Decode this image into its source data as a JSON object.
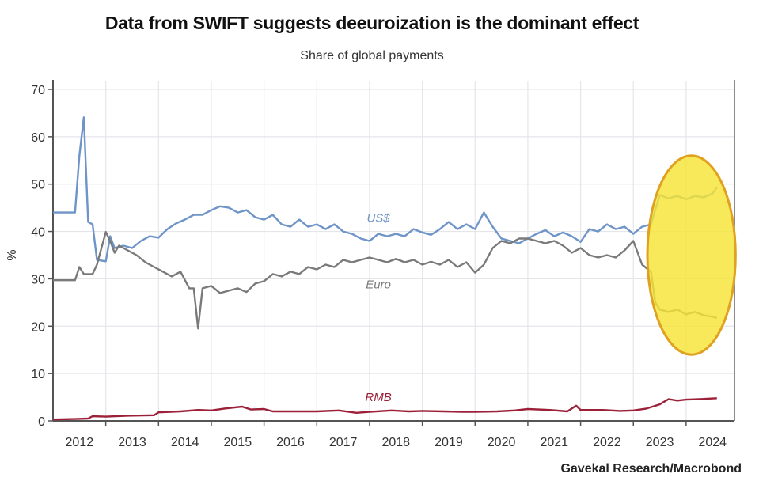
{
  "chart_data": {
    "type": "line",
    "title": "Data from SWIFT suggests deeuroization is the dominant effect",
    "subtitle": "Share of global payments",
    "ylabel": "%",
    "xlabel": "",
    "ylim": [
      0,
      70
    ],
    "xlim": [
      "2012-01",
      "2024-11"
    ],
    "yticks": [
      "0",
      "10",
      "20",
      "30",
      "40",
      "50",
      "60",
      "70"
    ],
    "xticks": [
      "2012",
      "2013",
      "2014",
      "2015",
      "2016",
      "2017",
      "2018",
      "2019",
      "2020",
      "2021",
      "2022",
      "2023",
      "2024"
    ],
    "grid": true,
    "source": "Gavekal Research/Macrobond",
    "highlight": {
      "shape": "ellipse",
      "from": "2023-06",
      "to": "2024-09",
      "ylim": [
        14,
        56
      ],
      "color": "#f5e436",
      "stroke": "#e0a020"
    },
    "series": [
      {
        "name": "US$",
        "color": "#6e94c8",
        "points": [
          [
            "2012-01",
            44.0
          ],
          [
            "2012-06",
            44.0
          ],
          [
            "2012-07",
            56
          ],
          [
            "2012-08",
            64.1
          ],
          [
            "2012-09",
            42
          ],
          [
            "2012-10",
            41.5
          ],
          [
            "2012-11",
            34
          ],
          [
            "2013-01",
            33.7
          ],
          [
            "2013-02",
            39
          ],
          [
            "2013-03",
            36.5
          ],
          [
            "2013-05",
            37
          ],
          [
            "2013-07",
            36.5
          ],
          [
            "2013-09",
            38
          ],
          [
            "2013-11",
            39
          ],
          [
            "2014-01",
            38.7
          ],
          [
            "2014-03",
            40.5
          ],
          [
            "2014-05",
            41.7
          ],
          [
            "2014-07",
            42.5
          ],
          [
            "2014-09",
            43.5
          ],
          [
            "2014-11",
            43.5
          ],
          [
            "2015-01",
            44.5
          ],
          [
            "2015-03",
            45.3
          ],
          [
            "2015-05",
            45
          ],
          [
            "2015-07",
            44
          ],
          [
            "2015-09",
            44.5
          ],
          [
            "2015-11",
            43
          ],
          [
            "2016-01",
            42.5
          ],
          [
            "2016-03",
            43.5
          ],
          [
            "2016-05",
            41.5
          ],
          [
            "2016-07",
            41
          ],
          [
            "2016-09",
            42.5
          ],
          [
            "2016-11",
            41
          ],
          [
            "2017-01",
            41.5
          ],
          [
            "2017-03",
            40.5
          ],
          [
            "2017-05",
            41.5
          ],
          [
            "2017-07",
            40
          ],
          [
            "2017-09",
            39.5
          ],
          [
            "2017-11",
            38.5
          ],
          [
            "2018-01",
            38
          ],
          [
            "2018-03",
            39.5
          ],
          [
            "2018-05",
            39
          ],
          [
            "2018-07",
            39.5
          ],
          [
            "2018-09",
            39
          ],
          [
            "2018-11",
            40.5
          ],
          [
            "2019-01",
            39.8
          ],
          [
            "2019-03",
            39.3
          ],
          [
            "2019-05",
            40.5
          ],
          [
            "2019-07",
            42
          ],
          [
            "2019-09",
            40.5
          ],
          [
            "2019-11",
            41.5
          ],
          [
            "2020-01",
            40.5
          ],
          [
            "2020-03",
            44
          ],
          [
            "2020-05",
            41
          ],
          [
            "2020-07",
            38.5
          ],
          [
            "2020-09",
            38
          ],
          [
            "2020-11",
            37.5
          ],
          [
            "2021-01",
            38.5
          ],
          [
            "2021-03",
            39.5
          ],
          [
            "2021-05",
            40.3
          ],
          [
            "2021-07",
            39
          ],
          [
            "2021-09",
            39.8
          ],
          [
            "2021-11",
            39
          ],
          [
            "2022-01",
            37.8
          ],
          [
            "2022-03",
            40.5
          ],
          [
            "2022-05",
            40
          ],
          [
            "2022-07",
            41.5
          ],
          [
            "2022-09",
            40.5
          ],
          [
            "2022-11",
            41
          ],
          [
            "2023-01",
            39.5
          ],
          [
            "2023-03",
            41
          ],
          [
            "2023-05",
            41.5
          ],
          [
            "2023-07",
            47.7
          ],
          [
            "2023-09",
            47
          ],
          [
            "2023-11",
            47.5
          ],
          [
            "2024-01",
            46.8
          ],
          [
            "2024-03",
            47.5
          ],
          [
            "2024-05",
            47.2
          ],
          [
            "2024-07",
            48
          ],
          [
            "2024-08",
            49.3
          ]
        ]
      },
      {
        "name": "Euro",
        "color": "#7a7a7a",
        "points": [
          [
            "2012-01",
            29.7
          ],
          [
            "2012-06",
            29.7
          ],
          [
            "2012-07",
            32.5
          ],
          [
            "2012-08",
            31
          ],
          [
            "2012-10",
            31
          ],
          [
            "2012-11",
            33
          ],
          [
            "2013-01",
            39.9
          ],
          [
            "2013-02",
            38
          ],
          [
            "2013-03",
            35.5
          ],
          [
            "2013-04",
            37
          ],
          [
            "2013-06",
            36
          ],
          [
            "2013-08",
            35
          ],
          [
            "2013-10",
            33.5
          ],
          [
            "2013-12",
            32.5
          ],
          [
            "2014-02",
            31.5
          ],
          [
            "2014-04",
            30.5
          ],
          [
            "2014-06",
            31.5
          ],
          [
            "2014-08",
            28
          ],
          [
            "2014-09",
            28
          ],
          [
            "2014-10",
            19.5
          ],
          [
            "2014-11",
            28
          ],
          [
            "2015-01",
            28.5
          ],
          [
            "2015-03",
            27
          ],
          [
            "2015-05",
            27.5
          ],
          [
            "2015-07",
            28
          ],
          [
            "2015-09",
            27.2
          ],
          [
            "2015-11",
            29
          ],
          [
            "2016-01",
            29.5
          ],
          [
            "2016-03",
            31
          ],
          [
            "2016-05",
            30.5
          ],
          [
            "2016-07",
            31.5
          ],
          [
            "2016-09",
            31
          ],
          [
            "2016-11",
            32.5
          ],
          [
            "2017-01",
            32
          ],
          [
            "2017-03",
            33
          ],
          [
            "2017-05",
            32.5
          ],
          [
            "2017-07",
            34
          ],
          [
            "2017-09",
            33.5
          ],
          [
            "2017-11",
            34
          ],
          [
            "2018-01",
            34.5
          ],
          [
            "2018-03",
            34
          ],
          [
            "2018-05",
            33.5
          ],
          [
            "2018-07",
            34.2
          ],
          [
            "2018-09",
            33.5
          ],
          [
            "2018-11",
            34
          ],
          [
            "2019-01",
            33
          ],
          [
            "2019-03",
            33.6
          ],
          [
            "2019-05",
            33
          ],
          [
            "2019-07",
            34
          ],
          [
            "2019-09",
            32.5
          ],
          [
            "2019-11",
            33.5
          ],
          [
            "2020-01",
            31.3
          ],
          [
            "2020-03",
            33
          ],
          [
            "2020-05",
            36.5
          ],
          [
            "2020-07",
            38
          ],
          [
            "2020-09",
            37.5
          ],
          [
            "2020-11",
            38.5
          ],
          [
            "2021-01",
            38.5
          ],
          [
            "2021-03",
            38
          ],
          [
            "2021-05",
            37.5
          ],
          [
            "2021-07",
            38
          ],
          [
            "2021-09",
            37
          ],
          [
            "2021-11",
            35.5
          ],
          [
            "2022-01",
            36.5
          ],
          [
            "2022-03",
            35
          ],
          [
            "2022-05",
            34.5
          ],
          [
            "2022-07",
            35
          ],
          [
            "2022-09",
            34.5
          ],
          [
            "2022-11",
            36
          ],
          [
            "2023-01",
            38
          ],
          [
            "2023-03",
            33
          ],
          [
            "2023-05",
            31.5
          ],
          [
            "2023-06",
            25
          ],
          [
            "2023-07",
            23.5
          ],
          [
            "2023-09",
            23
          ],
          [
            "2023-11",
            23.5
          ],
          [
            "2024-01",
            22.5
          ],
          [
            "2024-03",
            23
          ],
          [
            "2024-05",
            22.3
          ],
          [
            "2024-07",
            22
          ],
          [
            "2024-08",
            21.7
          ]
        ]
      },
      {
        "name": "RMB",
        "color": "#9b2038",
        "points": [
          [
            "2012-01",
            0.3
          ],
          [
            "2012-06",
            0.4
          ],
          [
            "2012-09",
            0.5
          ],
          [
            "2012-10",
            1.0
          ],
          [
            "2013-01",
            0.9
          ],
          [
            "2013-06",
            1.1
          ],
          [
            "2013-12",
            1.2
          ],
          [
            "2014-01",
            1.8
          ],
          [
            "2014-06",
            2.0
          ],
          [
            "2014-10",
            2.3
          ],
          [
            "2015-01",
            2.2
          ],
          [
            "2015-04",
            2.6
          ],
          [
            "2015-08",
            3.0
          ],
          [
            "2015-10",
            2.4
          ],
          [
            "2016-01",
            2.5
          ],
          [
            "2016-03",
            2.0
          ],
          [
            "2016-09",
            2.0
          ],
          [
            "2017-01",
            2.0
          ],
          [
            "2017-06",
            2.2
          ],
          [
            "2017-10",
            1.7
          ],
          [
            "2018-01",
            1.9
          ],
          [
            "2018-06",
            2.2
          ],
          [
            "2018-10",
            2.0
          ],
          [
            "2019-01",
            2.1
          ],
          [
            "2019-06",
            2.0
          ],
          [
            "2019-10",
            1.9
          ],
          [
            "2020-01",
            1.9
          ],
          [
            "2020-06",
            2.0
          ],
          [
            "2020-10",
            2.2
          ],
          [
            "2021-01",
            2.5
          ],
          [
            "2021-06",
            2.3
          ],
          [
            "2021-10",
            2.0
          ],
          [
            "2021-12",
            3.2
          ],
          [
            "2022-01",
            2.3
          ],
          [
            "2022-06",
            2.3
          ],
          [
            "2022-10",
            2.1
          ],
          [
            "2023-01",
            2.2
          ],
          [
            "2023-04",
            2.6
          ],
          [
            "2023-07",
            3.5
          ],
          [
            "2023-09",
            4.6
          ],
          [
            "2023-11",
            4.3
          ],
          [
            "2024-01",
            4.5
          ],
          [
            "2024-04",
            4.6
          ],
          [
            "2024-08",
            4.8
          ]
        ]
      }
    ],
    "series_labels": [
      {
        "text": "US$",
        "at": [
          "2018-03",
          42
        ]
      },
      {
        "text": "Euro",
        "at": [
          "2018-03",
          28
        ]
      },
      {
        "text": "RMB",
        "at": [
          "2018-03",
          4.2
        ]
      }
    ]
  }
}
